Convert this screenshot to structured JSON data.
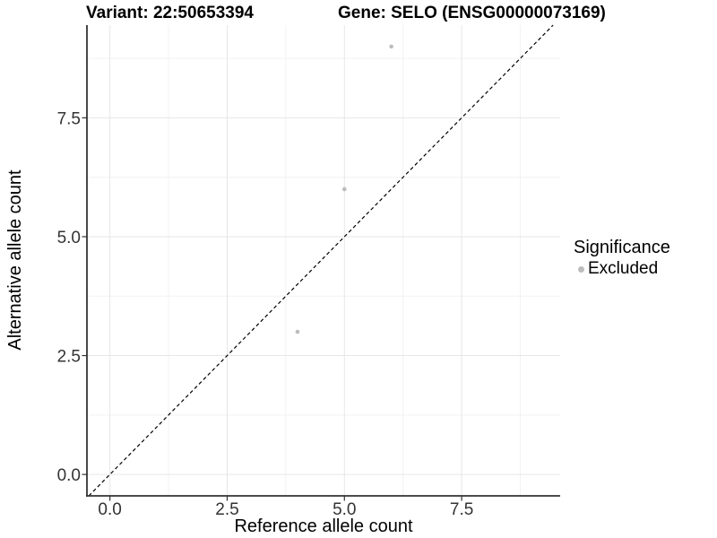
{
  "chart_data": {
    "type": "scatter",
    "title_left": "Variant: 22:50653394",
    "title_right": "Gene: SELO (ENSG00000073169)",
    "xlabel": "Reference allele count",
    "ylabel": "Alternative allele count",
    "xlim": [
      -0.49,
      9.6
    ],
    "ylim": [
      -0.45,
      9.45
    ],
    "x_ticks": {
      "values": [
        0,
        2.5,
        5,
        7.5
      ],
      "labels": [
        "0.0",
        "2.5",
        "5.0",
        "7.5"
      ]
    },
    "y_ticks": {
      "values": [
        0,
        2.5,
        5,
        7.5
      ],
      "labels": [
        "0.0",
        "2.5",
        "5.0",
        "7.5"
      ]
    },
    "x_minor": [
      1.25,
      3.75,
      6.25,
      8.75
    ],
    "y_minor": [
      1.25,
      3.75,
      6.25,
      8.75
    ],
    "grid": "major+minor",
    "reference_line": {
      "kind": "identity",
      "style": "dashed",
      "color": "#000000"
    },
    "series": [
      {
        "name": "Excluded",
        "color": "#bcbcbc",
        "marker": "circle",
        "points": [
          [
            4,
            3
          ],
          [
            5,
            6
          ],
          [
            6,
            9
          ]
        ]
      }
    ],
    "legend": {
      "title": "Significance",
      "position": "right",
      "entries": [
        {
          "label": "Excluded",
          "color": "#bcbcbc"
        }
      ]
    }
  },
  "colors": {
    "background": "#ffffff",
    "grid_major": "#e6e6e6",
    "grid_minor": "#f2f2f2",
    "axis_line": "#333333",
    "tick_mark": "#333333",
    "tick_text": "#333333",
    "title_text": "#000000"
  }
}
